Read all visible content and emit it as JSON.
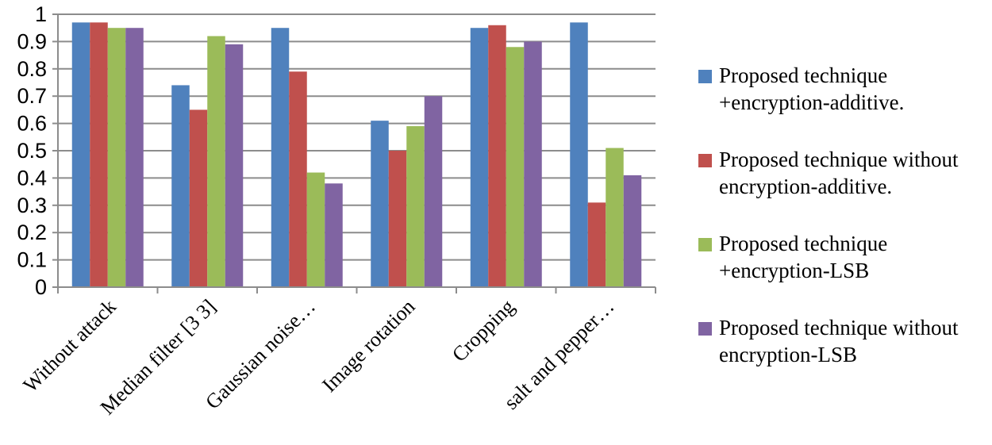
{
  "chart_data": {
    "type": "bar",
    "categories": [
      "Without attack",
      "Median filter [3 3]",
      "Gaussian noise…",
      "Image rotation",
      "Cropping",
      "salt and pepper…"
    ],
    "series": [
      {
        "name": "Proposed technique +encryption-additive.",
        "color": "#4F81BD",
        "values": [
          0.97,
          0.74,
          0.95,
          0.61,
          0.95,
          0.97
        ]
      },
      {
        "name": "Proposed technique without encryption-additive.",
        "color": "#C0504D",
        "values": [
          0.97,
          0.65,
          0.79,
          0.5,
          0.96,
          0.31
        ]
      },
      {
        "name": "Proposed technique +encryption-LSB",
        "color": "#9BBB59",
        "values": [
          0.95,
          0.92,
          0.42,
          0.59,
          0.88,
          0.51
        ]
      },
      {
        "name": "Proposed technique without encryption-LSB",
        "color": "#8064A2",
        "values": [
          0.95,
          0.89,
          0.38,
          0.7,
          0.9,
          0.41
        ]
      }
    ],
    "yticks": [
      "0",
      "0.1",
      "0.2",
      "0.3",
      "0.4",
      "0.5",
      "0.6",
      "0.7",
      "0.8",
      "0.9",
      "1"
    ],
    "ylim": [
      0,
      1
    ],
    "grid": true,
    "legend_position": "right"
  },
  "legend": {
    "items": [
      {
        "line1": "Proposed technique",
        "line2": "+encryption-additive."
      },
      {
        "line1": "Proposed technique without",
        "line2": "encryption-additive."
      },
      {
        "line1": "Proposed technique",
        "line2": "+encryption-LSB"
      },
      {
        "line1": "Proposed technique without",
        "line2": "encryption-LSB"
      }
    ]
  }
}
